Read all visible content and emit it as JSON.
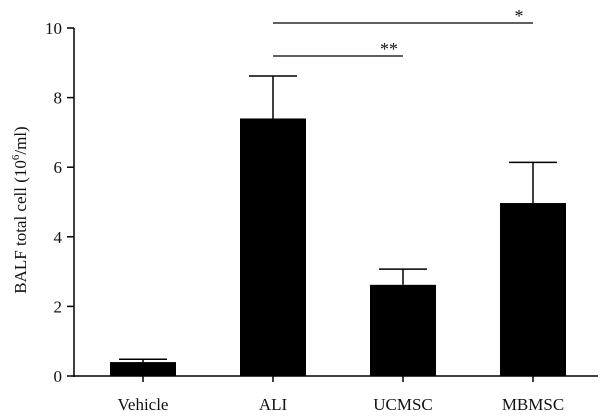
{
  "chart_data": {
    "type": "bar",
    "categories": [
      "Vehicle",
      "ALI",
      "UCMSC",
      "MBMSC"
    ],
    "values": [
      0.4,
      7.4,
      2.62,
      4.97
    ],
    "error_plus": [
      0.08,
      1.22,
      0.45,
      1.17
    ],
    "ylabel_main": "BALF total cell (10",
    "ylabel_sup": "6",
    "ylabel_tail": "/ml)",
    "xlabel": "",
    "ylim": [
      0,
      10
    ],
    "yticks": [
      "0",
      "2",
      "4",
      "6",
      "8",
      "10"
    ],
    "grid": false,
    "bar_color": "#000000",
    "significance": [
      {
        "from": "ALI",
        "to": "UCMSC",
        "label": "**"
      },
      {
        "from": "ALI",
        "to": "MBMSC",
        "label": "*"
      }
    ]
  }
}
